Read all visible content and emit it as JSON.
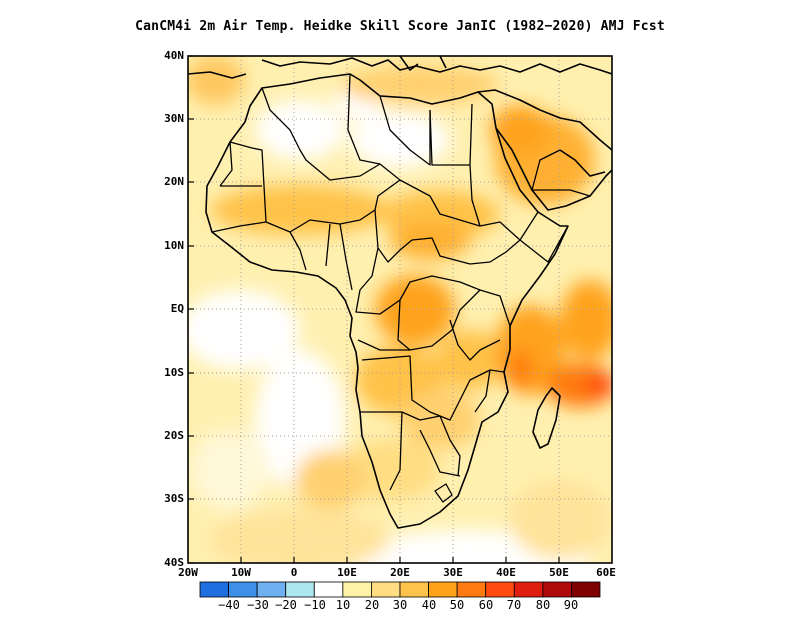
{
  "title": "CanCM4i  2m Air Temp. Heidke Skill Score JanIC (1982−2020) AMJ Fcst",
  "map": {
    "lat_labels": [
      "40N",
      "30N",
      "20N",
      "10N",
      "EQ",
      "10S",
      "20S",
      "30S",
      "40S"
    ],
    "lon_labels": [
      "20W",
      "10W",
      "0",
      "10E",
      "20E",
      "30E",
      "40E",
      "50E",
      "60E"
    ],
    "lat_range": [
      -40,
      40
    ],
    "lon_range": [
      -20,
      60
    ],
    "grid": "dotted"
  },
  "colorbar": {
    "labels": [
      "−40",
      "−30",
      "−20",
      "−10",
      "10",
      "20",
      "30",
      "40",
      "50",
      "60",
      "70",
      "80",
      "90"
    ],
    "colors": [
      "#1f6fe0",
      "#3d8fe8",
      "#6fb0f0",
      "#aee6f0",
      "#ffffff",
      "#fff3a8",
      "#ffdd82",
      "#ffc24a",
      "#ffa31a",
      "#ff7a10",
      "#ff4a10",
      "#e01e10",
      "#b00a0a",
      "#7f0000"
    ]
  }
}
